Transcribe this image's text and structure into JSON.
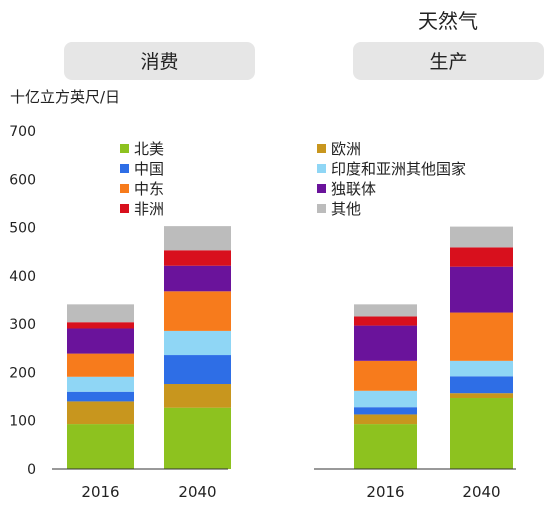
{
  "title": "天然气",
  "unit_label": "十亿立方英尺/日",
  "panels": {
    "consumption": "消费",
    "production": "生产"
  },
  "colors": {
    "北美": "#8dc21f",
    "欧洲": "#c8961e",
    "中国": "#2e6ee6",
    "印度和亚洲其他国家": "#8fd6f5",
    "中东": "#f77b1c",
    "独联体": "#6a139b",
    "非洲": "#d8101d",
    "其他": "#bcbcbc",
    "panel_bg": "#e6e6e6",
    "axis": "#333333"
  },
  "chart_data": [
    {
      "type": "bar",
      "stacked": true,
      "title": "消费",
      "ylabel": "十亿立方英尺/日",
      "ylim": [
        0,
        700
      ],
      "yticks": [
        0,
        100,
        200,
        300,
        400,
        500,
        600,
        700
      ],
      "categories": [
        "2016",
        "2040"
      ],
      "series": [
        {
          "name": "北美",
          "values": [
            93,
            127
          ]
        },
        {
          "name": "欧洲",
          "values": [
            47,
            49
          ]
        },
        {
          "name": "中国",
          "values": [
            20,
            60
          ]
        },
        {
          "name": "印度和亚洲其他国家",
          "values": [
            31,
            50
          ]
        },
        {
          "name": "中东",
          "values": [
            48,
            82
          ]
        },
        {
          "name": "独联体",
          "values": [
            52,
            53
          ]
        },
        {
          "name": "非洲",
          "values": [
            13,
            32
          ]
        },
        {
          "name": "其他",
          "values": [
            37,
            50
          ]
        }
      ]
    },
    {
      "type": "bar",
      "stacked": true,
      "title": "生产",
      "ylim": [
        0,
        700
      ],
      "categories": [
        "2016",
        "2040"
      ],
      "series": [
        {
          "name": "北美",
          "values": [
            93,
            147
          ]
        },
        {
          "name": "欧洲",
          "values": [
            20,
            10
          ]
        },
        {
          "name": "中国",
          "values": [
            15,
            35
          ]
        },
        {
          "name": "印度和亚洲其他国家",
          "values": [
            34,
            32
          ]
        },
        {
          "name": "中东",
          "values": [
            62,
            100
          ]
        },
        {
          "name": "独联体",
          "values": [
            73,
            95
          ]
        },
        {
          "name": "非洲",
          "values": [
            19,
            40
          ]
        },
        {
          "name": "其他",
          "values": [
            25,
            43
          ]
        }
      ]
    }
  ],
  "legend": {
    "left": [
      "北美",
      "中国",
      "中东",
      "非洲"
    ],
    "right": [
      "欧洲",
      "印度和亚洲其他国家",
      "独联体",
      "其他"
    ]
  }
}
